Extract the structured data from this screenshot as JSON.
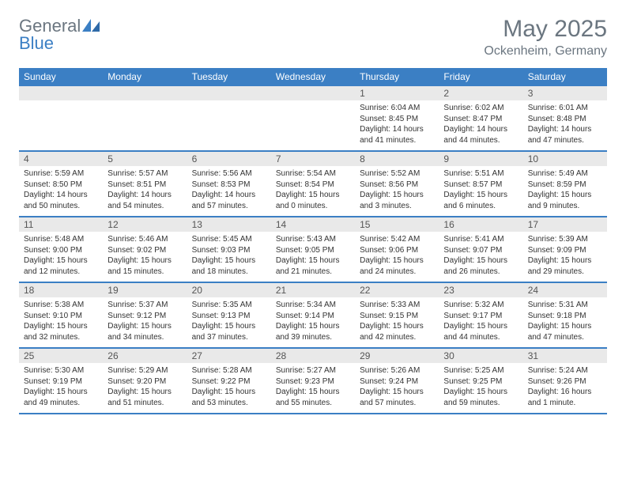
{
  "logo": {
    "text1": "General",
    "text2": "Blue"
  },
  "title": "May 2025",
  "location": "Ockenheim, Germany",
  "colors": {
    "header_bar": "#3b7fc4",
    "daynum_bg": "#e9e9e9",
    "text_muted": "#6b7680"
  },
  "weekdays": [
    "Sunday",
    "Monday",
    "Tuesday",
    "Wednesday",
    "Thursday",
    "Friday",
    "Saturday"
  ],
  "weeks": [
    [
      {
        "num": "",
        "lines": []
      },
      {
        "num": "",
        "lines": []
      },
      {
        "num": "",
        "lines": []
      },
      {
        "num": "",
        "lines": []
      },
      {
        "num": "1",
        "lines": [
          "Sunrise: 6:04 AM",
          "Sunset: 8:45 PM",
          "Daylight: 14 hours and 41 minutes."
        ]
      },
      {
        "num": "2",
        "lines": [
          "Sunrise: 6:02 AM",
          "Sunset: 8:47 PM",
          "Daylight: 14 hours and 44 minutes."
        ]
      },
      {
        "num": "3",
        "lines": [
          "Sunrise: 6:01 AM",
          "Sunset: 8:48 PM",
          "Daylight: 14 hours and 47 minutes."
        ]
      }
    ],
    [
      {
        "num": "4",
        "lines": [
          "Sunrise: 5:59 AM",
          "Sunset: 8:50 PM",
          "Daylight: 14 hours and 50 minutes."
        ]
      },
      {
        "num": "5",
        "lines": [
          "Sunrise: 5:57 AM",
          "Sunset: 8:51 PM",
          "Daylight: 14 hours and 54 minutes."
        ]
      },
      {
        "num": "6",
        "lines": [
          "Sunrise: 5:56 AM",
          "Sunset: 8:53 PM",
          "Daylight: 14 hours and 57 minutes."
        ]
      },
      {
        "num": "7",
        "lines": [
          "Sunrise: 5:54 AM",
          "Sunset: 8:54 PM",
          "Daylight: 15 hours and 0 minutes."
        ]
      },
      {
        "num": "8",
        "lines": [
          "Sunrise: 5:52 AM",
          "Sunset: 8:56 PM",
          "Daylight: 15 hours and 3 minutes."
        ]
      },
      {
        "num": "9",
        "lines": [
          "Sunrise: 5:51 AM",
          "Sunset: 8:57 PM",
          "Daylight: 15 hours and 6 minutes."
        ]
      },
      {
        "num": "10",
        "lines": [
          "Sunrise: 5:49 AM",
          "Sunset: 8:59 PM",
          "Daylight: 15 hours and 9 minutes."
        ]
      }
    ],
    [
      {
        "num": "11",
        "lines": [
          "Sunrise: 5:48 AM",
          "Sunset: 9:00 PM",
          "Daylight: 15 hours and 12 minutes."
        ]
      },
      {
        "num": "12",
        "lines": [
          "Sunrise: 5:46 AM",
          "Sunset: 9:02 PM",
          "Daylight: 15 hours and 15 minutes."
        ]
      },
      {
        "num": "13",
        "lines": [
          "Sunrise: 5:45 AM",
          "Sunset: 9:03 PM",
          "Daylight: 15 hours and 18 minutes."
        ]
      },
      {
        "num": "14",
        "lines": [
          "Sunrise: 5:43 AM",
          "Sunset: 9:05 PM",
          "Daylight: 15 hours and 21 minutes."
        ]
      },
      {
        "num": "15",
        "lines": [
          "Sunrise: 5:42 AM",
          "Sunset: 9:06 PM",
          "Daylight: 15 hours and 24 minutes."
        ]
      },
      {
        "num": "16",
        "lines": [
          "Sunrise: 5:41 AM",
          "Sunset: 9:07 PM",
          "Daylight: 15 hours and 26 minutes."
        ]
      },
      {
        "num": "17",
        "lines": [
          "Sunrise: 5:39 AM",
          "Sunset: 9:09 PM",
          "Daylight: 15 hours and 29 minutes."
        ]
      }
    ],
    [
      {
        "num": "18",
        "lines": [
          "Sunrise: 5:38 AM",
          "Sunset: 9:10 PM",
          "Daylight: 15 hours and 32 minutes."
        ]
      },
      {
        "num": "19",
        "lines": [
          "Sunrise: 5:37 AM",
          "Sunset: 9:12 PM",
          "Daylight: 15 hours and 34 minutes."
        ]
      },
      {
        "num": "20",
        "lines": [
          "Sunrise: 5:35 AM",
          "Sunset: 9:13 PM",
          "Daylight: 15 hours and 37 minutes."
        ]
      },
      {
        "num": "21",
        "lines": [
          "Sunrise: 5:34 AM",
          "Sunset: 9:14 PM",
          "Daylight: 15 hours and 39 minutes."
        ]
      },
      {
        "num": "22",
        "lines": [
          "Sunrise: 5:33 AM",
          "Sunset: 9:15 PM",
          "Daylight: 15 hours and 42 minutes."
        ]
      },
      {
        "num": "23",
        "lines": [
          "Sunrise: 5:32 AM",
          "Sunset: 9:17 PM",
          "Daylight: 15 hours and 44 minutes."
        ]
      },
      {
        "num": "24",
        "lines": [
          "Sunrise: 5:31 AM",
          "Sunset: 9:18 PM",
          "Daylight: 15 hours and 47 minutes."
        ]
      }
    ],
    [
      {
        "num": "25",
        "lines": [
          "Sunrise: 5:30 AM",
          "Sunset: 9:19 PM",
          "Daylight: 15 hours and 49 minutes."
        ]
      },
      {
        "num": "26",
        "lines": [
          "Sunrise: 5:29 AM",
          "Sunset: 9:20 PM",
          "Daylight: 15 hours and 51 minutes."
        ]
      },
      {
        "num": "27",
        "lines": [
          "Sunrise: 5:28 AM",
          "Sunset: 9:22 PM",
          "Daylight: 15 hours and 53 minutes."
        ]
      },
      {
        "num": "28",
        "lines": [
          "Sunrise: 5:27 AM",
          "Sunset: 9:23 PM",
          "Daylight: 15 hours and 55 minutes."
        ]
      },
      {
        "num": "29",
        "lines": [
          "Sunrise: 5:26 AM",
          "Sunset: 9:24 PM",
          "Daylight: 15 hours and 57 minutes."
        ]
      },
      {
        "num": "30",
        "lines": [
          "Sunrise: 5:25 AM",
          "Sunset: 9:25 PM",
          "Daylight: 15 hours and 59 minutes."
        ]
      },
      {
        "num": "31",
        "lines": [
          "Sunrise: 5:24 AM",
          "Sunset: 9:26 PM",
          "Daylight: 16 hours and 1 minute."
        ]
      }
    ]
  ]
}
